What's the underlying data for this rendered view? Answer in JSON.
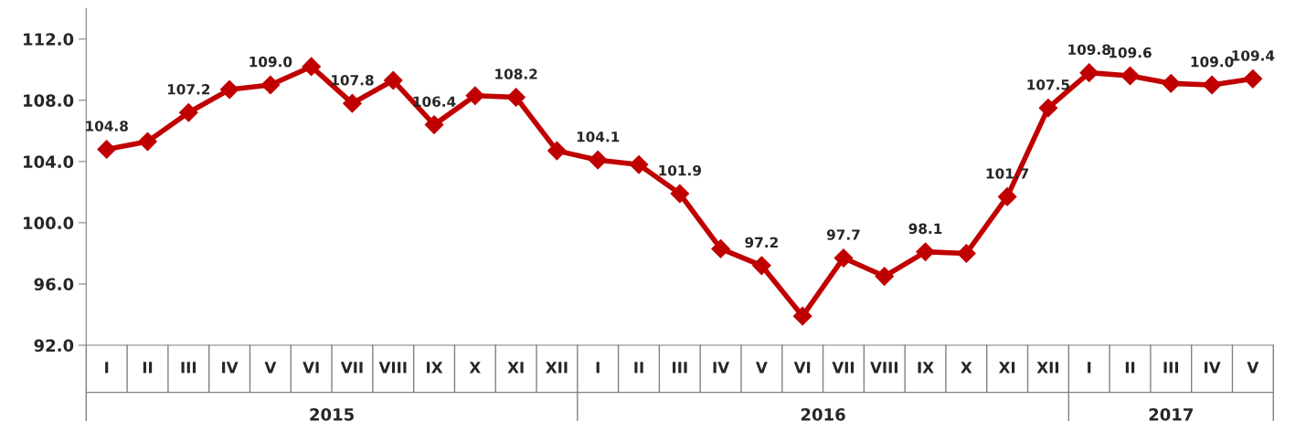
{
  "chart_data": {
    "type": "line",
    "categories": [
      "I",
      "II",
      "III",
      "IV",
      "V",
      "VI",
      "VII",
      "VIII",
      "IX",
      "X",
      "XI",
      "XII",
      "I",
      "II",
      "III",
      "IV",
      "V",
      "VI",
      "VII",
      "VIII",
      "IX",
      "X",
      "XI",
      "XII",
      "I",
      "II",
      "III",
      "IV",
      "V"
    ],
    "series": [
      {
        "color": "#c00000",
        "marker": "diamond",
        "line_style": "solid",
        "values": [
          104.8,
          105.3,
          107.2,
          108.7,
          109.0,
          110.2,
          107.8,
          109.3,
          106.4,
          108.3,
          108.2,
          104.7,
          104.1,
          103.8,
          101.9,
          98.3,
          97.2,
          93.9,
          97.7,
          96.5,
          98.1,
          98.0,
          101.7,
          107.5,
          109.8,
          109.6,
          109.1,
          109.0,
          109.4
        ],
        "value_labels": [
          "104.8",
          null,
          "107.2",
          null,
          "109.0",
          null,
          "107.8",
          null,
          "106.4",
          null,
          "108.2",
          null,
          "104.1",
          null,
          "101.9",
          null,
          "97.2",
          null,
          "97.7",
          null,
          "98.1",
          null,
          "101.7",
          "107.5",
          "109.8",
          "109.6",
          null,
          "109.0",
          "109.4"
        ]
      }
    ],
    "ylim": [
      92,
      114
    ],
    "yticks": [
      {
        "value": 92,
        "label": "92.0"
      },
      {
        "value": 96,
        "label": "96.0"
      },
      {
        "value": 100,
        "label": "100.0"
      },
      {
        "value": 104,
        "label": "104.0"
      },
      {
        "value": 108,
        "label": "108.0"
      },
      {
        "value": 112,
        "label": "112.0"
      }
    ],
    "grid": false,
    "legend": false,
    "annotations": [
      "2015",
      "2016",
      "2017"
    ]
  }
}
